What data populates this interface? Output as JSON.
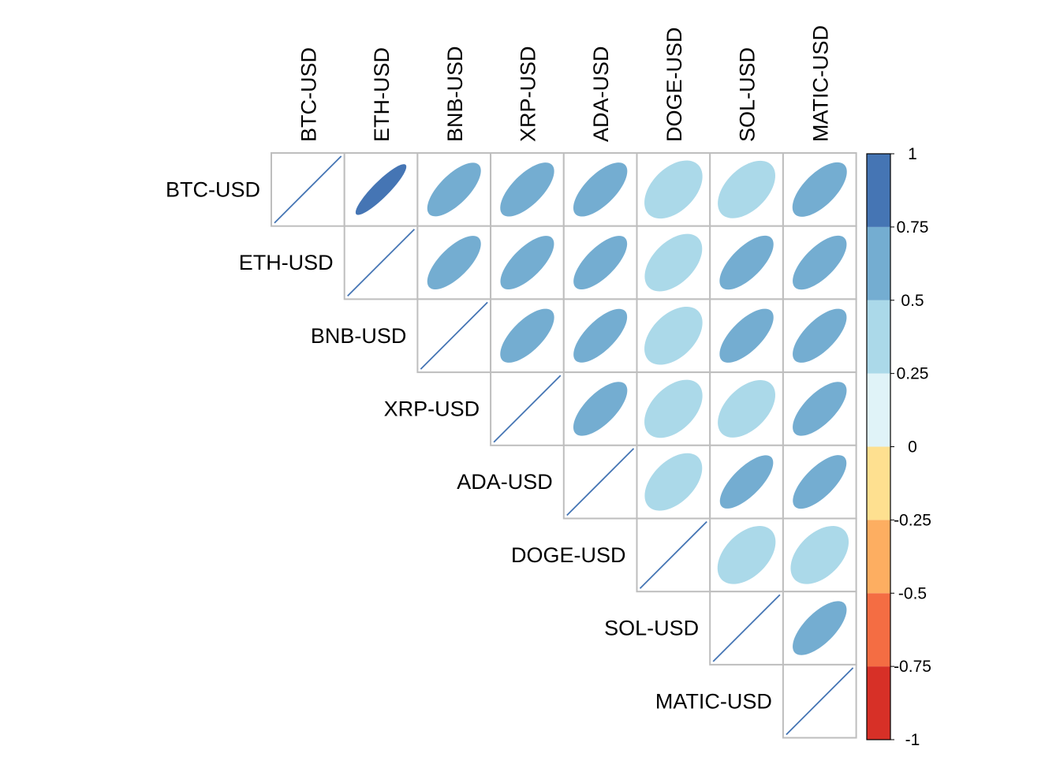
{
  "chart_data": {
    "type": "heatmap",
    "style": "corrplot-ellipse-upper",
    "title": "",
    "variables": [
      "BTC-USD",
      "ETH-USD",
      "BNB-USD",
      "XRP-USD",
      "ADA-USD",
      "DOGE-USD",
      "SOL-USD",
      "MATIC-USD"
    ],
    "matrix": [
      [
        1.0,
        0.9,
        0.7,
        0.68,
        0.68,
        0.45,
        0.48,
        0.65
      ],
      [
        0.9,
        1.0,
        0.7,
        0.7,
        0.7,
        0.48,
        0.68,
        0.68
      ],
      [
        0.7,
        0.7,
        1.0,
        0.68,
        0.7,
        0.45,
        0.68,
        0.68
      ],
      [
        0.68,
        0.7,
        0.68,
        1.0,
        0.68,
        0.45,
        0.48,
        0.68
      ],
      [
        0.68,
        0.7,
        0.7,
        0.68,
        1.0,
        0.48,
        0.72,
        0.7
      ],
      [
        0.45,
        0.48,
        0.45,
        0.45,
        0.48,
        1.0,
        0.45,
        0.45
      ],
      [
        0.48,
        0.68,
        0.68,
        0.48,
        0.72,
        0.45,
        1.0,
        0.68
      ],
      [
        0.65,
        0.68,
        0.68,
        0.68,
        0.7,
        0.45,
        0.68,
        1.0
      ]
    ],
    "colorbar": {
      "min": -1,
      "max": 1,
      "ticks": [
        "1",
        "0.75",
        "0.5",
        "0.25",
        "0",
        "-0.25",
        "-0.5",
        "-0.75",
        "-1"
      ],
      "bins": [
        {
          "from": -1.0,
          "to": -0.75,
          "color": "#D73027"
        },
        {
          "from": -0.75,
          "to": -0.5,
          "color": "#F46D43"
        },
        {
          "from": -0.5,
          "to": -0.25,
          "color": "#FDAE61"
        },
        {
          "from": -0.25,
          "to": 0.0,
          "color": "#FEE090"
        },
        {
          "from": 0.0,
          "to": 0.25,
          "color": "#E0F3F8"
        },
        {
          "from": 0.25,
          "to": 0.5,
          "color": "#ABD9E9"
        },
        {
          "from": 0.5,
          "to": 0.75,
          "color": "#74ADD1"
        },
        {
          "from": 0.75,
          "to": 1.0,
          "color": "#4575B4"
        }
      ]
    },
    "grid": true,
    "grid_color": "#BEBEBE",
    "legend_position": "right"
  }
}
